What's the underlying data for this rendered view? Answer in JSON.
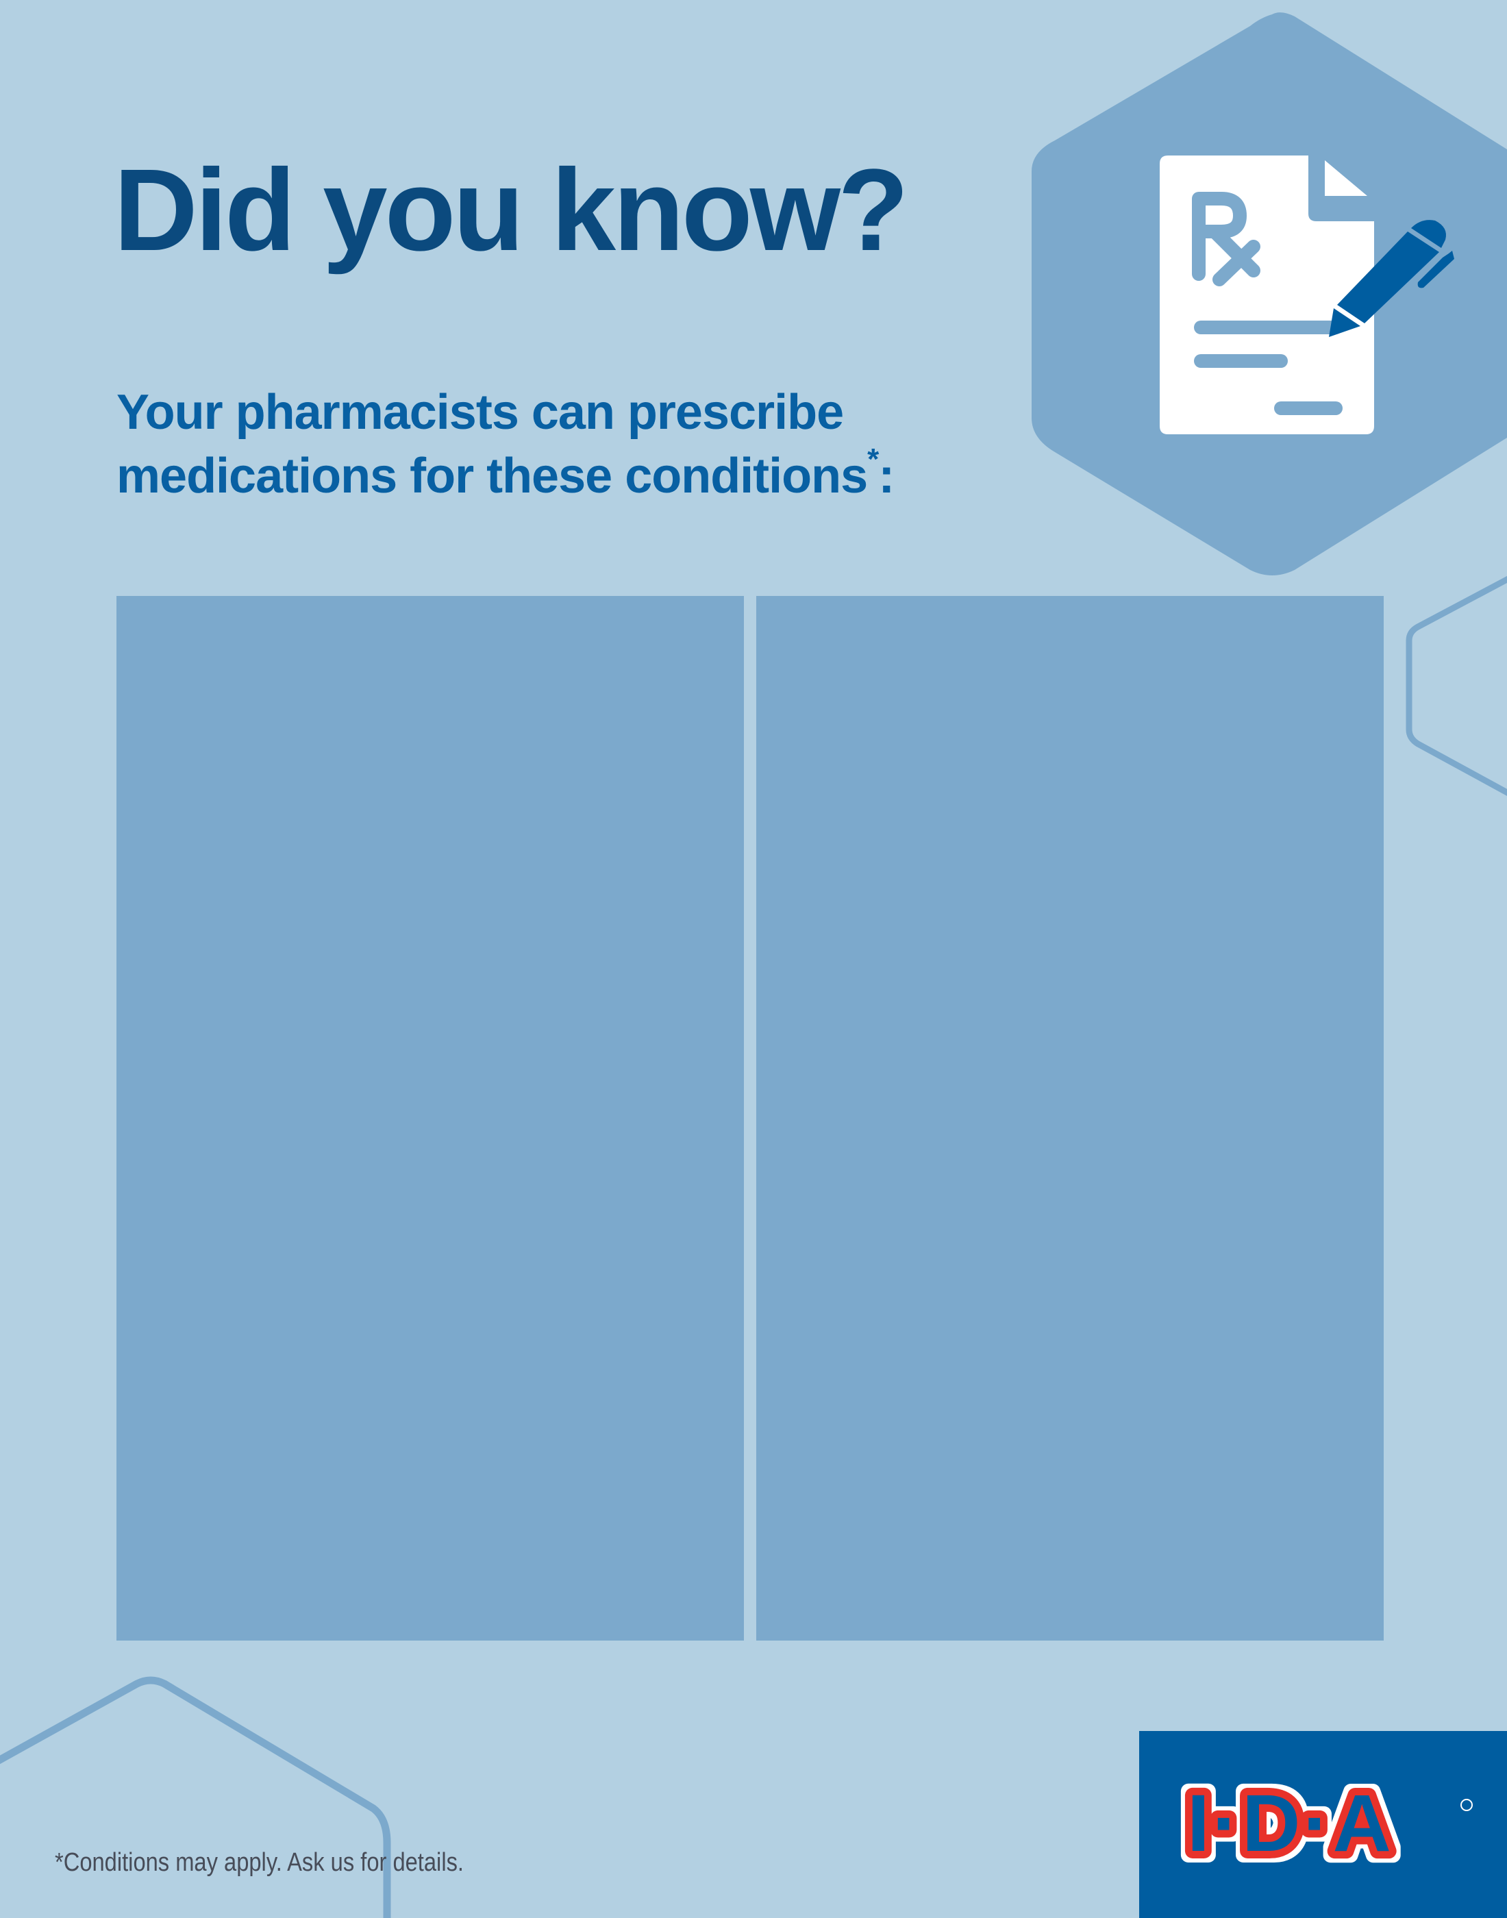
{
  "header": {
    "title": "Did you know?",
    "subtitle_line1": "Your pharmacists can prescribe",
    "subtitle_line2": "medications for these conditions",
    "subtitle_mark": "*",
    "subtitle_end": ":"
  },
  "icon": {
    "name": "prescription-document-with-pen-icon",
    "rx_text": "Rx"
  },
  "panels": [
    {
      "name": "conditions-panel-left"
    },
    {
      "name": "conditions-panel-right"
    }
  ],
  "footer": {
    "footnote": "*Conditions may apply. Ask us for details.",
    "logo_text": "I·D·A®"
  },
  "colors": {
    "background": "#b3d0e2",
    "panel": "#7ca9cc",
    "title": "#0b4a7e",
    "subtitle": "#0860a3",
    "brand_blue": "#005da0",
    "brand_red": "#e8312a"
  }
}
